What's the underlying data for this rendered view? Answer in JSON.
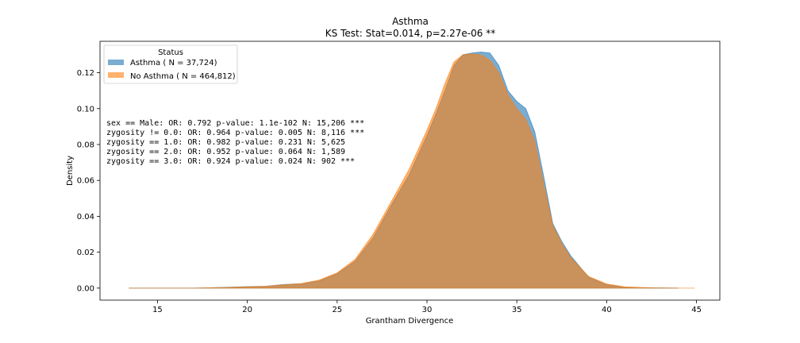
{
  "chart_data": {
    "type": "area",
    "title": "Asthma",
    "subtitle": "KS Test: Stat=0.014, p=2.27e-06 **",
    "xlabel": "Grantham Divergence",
    "ylabel": "Density",
    "xlim": [
      11.8,
      46.3
    ],
    "ylim": [
      -0.0067,
      0.1375
    ],
    "xticks": [
      15,
      20,
      25,
      30,
      35,
      40,
      45
    ],
    "yticks": [
      0.0,
      0.02,
      0.04,
      0.06,
      0.08,
      0.1,
      0.12
    ],
    "xtick_labels": [
      "15",
      "20",
      "25",
      "30",
      "35",
      "40",
      "45"
    ],
    "ytick_labels": [
      "0.00",
      "0.02",
      "0.04",
      "0.06",
      "0.08",
      "0.10",
      "0.12"
    ],
    "legend": {
      "title": "Status",
      "placement": "top-left",
      "entries": [
        "Asthma ( N = 37,724)",
        "No Asthma ( N = 464,812)"
      ]
    },
    "annotations": [
      "sex == Male: OR: 0.792 p-value: 1.1e-102 N: 15,206 ***",
      "zygosity != 0.0: OR: 0.964 p-value: 0.005 N: 8,116 ***",
      "zygosity == 1.0: OR: 0.982 p-value: 0.231 N: 5,625",
      "zygosity == 2.0: OR: 0.952 p-value: 0.064 N: 1,589",
      "zygosity == 3.0: OR: 0.924 p-value: 0.024 N: 902 ***"
    ],
    "series": [
      {
        "name": "Asthma ( N = 37,724)",
        "color": "#1f77b4",
        "x": [
          13.4,
          15,
          17,
          18,
          19,
          20,
          21,
          22,
          23,
          24,
          25,
          26,
          27,
          28,
          29,
          30,
          30.5,
          31,
          31.5,
          32,
          32.5,
          33,
          33.5,
          34,
          34.5,
          35,
          35.5,
          36,
          36.5,
          37,
          37.5,
          38,
          39,
          40,
          41,
          42,
          43,
          44
        ],
        "y": [
          0.0,
          0.0,
          0.0,
          0.0002,
          0.0005,
          0.0008,
          0.001,
          0.002,
          0.0025,
          0.004,
          0.008,
          0.015,
          0.028,
          0.046,
          0.063,
          0.085,
          0.097,
          0.11,
          0.124,
          0.13,
          0.131,
          0.1315,
          0.131,
          0.124,
          0.11,
          0.104,
          0.1,
          0.087,
          0.062,
          0.036,
          0.026,
          0.018,
          0.006,
          0.002,
          0.0005,
          0.0002,
          0.0001,
          0.0
        ]
      },
      {
        "name": "No Asthma ( N = 464,812)",
        "color": "#ff7f0e",
        "x": [
          13.4,
          15,
          17,
          18,
          19,
          20,
          21,
          22,
          23,
          24,
          25,
          26,
          27,
          28,
          29,
          30,
          30.5,
          31,
          31.5,
          32,
          32.5,
          33,
          33.5,
          34,
          34.5,
          35,
          35.5,
          36,
          36.5,
          37,
          37.5,
          38,
          39,
          40,
          41,
          42,
          43,
          44,
          44.9
        ],
        "y": [
          0.0,
          0.0,
          0.0,
          0.0002,
          0.0004,
          0.0007,
          0.001,
          0.0018,
          0.0025,
          0.0045,
          0.0085,
          0.016,
          0.03,
          0.048,
          0.066,
          0.088,
          0.1,
          0.114,
          0.126,
          0.13,
          0.1305,
          0.13,
          0.127,
          0.12,
          0.108,
          0.1,
          0.094,
          0.082,
          0.058,
          0.035,
          0.025,
          0.017,
          0.0065,
          0.0023,
          0.0007,
          0.0003,
          0.0001,
          0.0,
          0.0
        ]
      }
    ]
  }
}
